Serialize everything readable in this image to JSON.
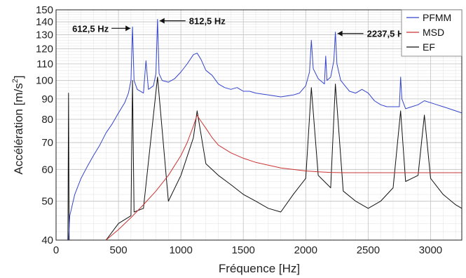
{
  "chart_data": {
    "type": "line",
    "xlabel": "Fréquence [Hz]",
    "ylabel_text": "Accélération [m/s",
    "ylabel_sup": "2",
    "ylabel_close": "]",
    "xlim": [
      0,
      3250
    ],
    "ylim": [
      40,
      150
    ],
    "y_scale": "log",
    "grid": true,
    "legend_position": "top-right",
    "x_ticks": [
      0,
      500,
      1000,
      1500,
      2000,
      2500,
      3000
    ],
    "x_tick_labels": [
      "0",
      "500",
      "1000",
      "1500",
      "2000",
      "2500",
      "3000"
    ],
    "y_ticks": [
      40,
      50,
      60,
      70,
      80,
      90,
      100,
      110,
      120,
      130,
      140,
      150
    ],
    "y_tick_labels": [
      "40",
      "50",
      "60",
      "70",
      "80",
      "90",
      "100",
      "110",
      "120",
      "130",
      "140",
      "150"
    ],
    "annotations": [
      {
        "text": "612,5 Hz",
        "x": 612.5,
        "y": 136,
        "arrow": "right"
      },
      {
        "text": "812,5 Hz",
        "x": 812.5,
        "y": 142,
        "arrow": "left"
      },
      {
        "text": "2237,5 Hz",
        "x": 2237.5,
        "y": 132,
        "arrow": "left"
      }
    ],
    "series": [
      {
        "name": "PFMM",
        "color": "#3344cc",
        "x": [
          100,
          110,
          150,
          200,
          250,
          300,
          350,
          400,
          450,
          500,
          550,
          580,
          600,
          612.5,
          625,
          650,
          700,
          720,
          740,
          780,
          800,
          812.5,
          825,
          850,
          900,
          950,
          1000,
          1050,
          1100,
          1130,
          1160,
          1200,
          1250,
          1300,
          1350,
          1400,
          1450,
          1500,
          1550,
          1600,
          1700,
          1800,
          1900,
          1950,
          2000,
          2030,
          2045,
          2060,
          2100,
          2150,
          2160,
          2170,
          2200,
          2225,
          2237.5,
          2250,
          2280,
          2350,
          2400,
          2450,
          2500,
          2550,
          2600,
          2650,
          2700,
          2750,
          2760,
          2770,
          2800,
          2850,
          2900,
          2950,
          3000,
          3050,
          3100,
          3150,
          3200,
          3250
        ],
        "y": [
          40,
          46,
          52,
          57,
          61,
          65,
          69,
          74,
          78,
          83,
          88,
          93,
          100,
          136,
          100,
          95,
          93,
          112,
          95,
          97,
          104,
          142,
          104,
          100,
          99,
          101,
          105,
          110,
          116,
          117,
          113,
          106,
          103,
          98,
          96,
          95,
          96,
          94,
          94,
          93,
          92,
          91,
          92,
          93,
          97,
          105,
          126,
          107,
          101,
          98,
          115,
          100,
          102,
          112,
          132,
          110,
          100,
          94,
          93,
          95,
          93,
          89,
          87,
          86,
          86,
          86,
          102,
          90,
          85,
          86,
          87,
          89,
          88,
          87,
          86,
          85,
          84,
          83
        ]
      },
      {
        "name": "MSD",
        "color": "#cc3333",
        "x": [
          400,
          500,
          600,
          700,
          800,
          900,
          1000,
          1050,
          1100,
          1130,
          1150,
          1200,
          1250,
          1300,
          1400,
          1500,
          1600,
          1700,
          1800,
          1900,
          2000,
          2100,
          2200,
          2300,
          2400,
          2500,
          2600,
          2700,
          2800,
          2900,
          3000,
          3100,
          3200,
          3250
        ],
        "y": [
          40,
          42.5,
          45.5,
          49,
          53,
          58,
          65,
          70,
          77,
          82,
          80,
          76,
          72,
          69,
          66,
          64,
          62.5,
          61.5,
          60.5,
          60,
          59.5,
          59.2,
          59,
          58.9,
          58.9,
          58.9,
          58.9,
          58.9,
          58.9,
          58.9,
          58.9,
          58.9,
          58.9,
          58.9
        ]
      },
      {
        "name": "EF",
        "color": "#111111",
        "x": [
          95,
          100,
          105,
          200,
          300,
          400,
          500,
          600,
          612.5,
          625,
          700,
          812.5,
          900,
          1000,
          1100,
          1130,
          1200,
          1300,
          1400,
          1500,
          1600,
          1700,
          1800,
          1900,
          2000,
          2045,
          2100,
          2200,
          2237.5,
          2300,
          2400,
          2500,
          2600,
          2700,
          2760,
          2800,
          2900,
          2950,
          3000,
          3100,
          3200,
          3250
        ],
        "y": [
          40,
          93,
          40,
          40,
          40,
          40,
          44,
          46,
          100,
          47,
          48,
          102,
          50,
          58,
          72,
          84,
          62,
          58,
          55,
          52,
          50,
          48,
          47,
          52,
          57,
          96,
          58,
          54,
          98,
          53,
          50,
          48,
          50,
          54,
          84,
          56,
          58,
          82,
          57,
          52,
          49,
          48
        ]
      }
    ]
  }
}
